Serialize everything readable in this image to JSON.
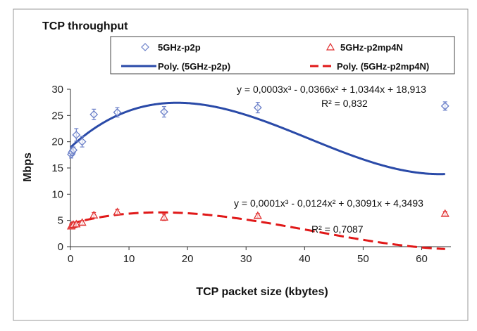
{
  "chart_data": {
    "type": "scatter",
    "title": "TCP throughput",
    "xlabel": "TCP packet size (kbytes)",
    "ylabel": "Mbps",
    "xlim": [
      0,
      65
    ],
    "ylim": [
      0,
      30
    ],
    "x_ticks": [
      0,
      10,
      20,
      30,
      40,
      50,
      60
    ],
    "y_ticks": [
      0,
      5,
      10,
      15,
      20,
      25,
      30
    ],
    "grid": false,
    "legend_position": "top",
    "series": [
      {
        "name": "5GHz-p2p",
        "marker": "diamond",
        "color": "#6a7fc8",
        "points": [
          {
            "x": 0.125,
            "y": 17.6,
            "err": 0.7
          },
          {
            "x": 0.25,
            "y": 18.0,
            "err": 0.6
          },
          {
            "x": 0.5,
            "y": 18.4,
            "err": 0.6
          },
          {
            "x": 1,
            "y": 21.3,
            "err": 1.2
          },
          {
            "x": 2,
            "y": 20.0,
            "err": 1.0
          },
          {
            "x": 4,
            "y": 25.2,
            "err": 1.0
          },
          {
            "x": 8,
            "y": 25.6,
            "err": 0.9
          },
          {
            "x": 16,
            "y": 25.7,
            "err": 1.0
          },
          {
            "x": 32,
            "y": 26.5,
            "err": 1.0
          },
          {
            "x": 64,
            "y": 26.8,
            "err": 0.8
          }
        ]
      },
      {
        "name": "5GHz-p2mp4N",
        "marker": "triangle",
        "color": "#e03030",
        "points": [
          {
            "x": 0.125,
            "y": 3.9,
            "err": 0.4
          },
          {
            "x": 0.25,
            "y": 4.1,
            "err": 0.4
          },
          {
            "x": 0.5,
            "y": 4.2,
            "err": 0.4
          },
          {
            "x": 1,
            "y": 4.3,
            "err": 0.4
          },
          {
            "x": 2,
            "y": 4.6,
            "err": 0.4
          },
          {
            "x": 4,
            "y": 6.0,
            "err": 0.5
          },
          {
            "x": 8,
            "y": 6.6,
            "err": 0.5
          },
          {
            "x": 16,
            "y": 5.6,
            "err": 0.6
          },
          {
            "x": 32,
            "y": 5.9,
            "err": 0.4
          },
          {
            "x": 64,
            "y": 6.3,
            "err": 0.4
          }
        ]
      }
    ],
    "trendlines": [
      {
        "name": "Poly. (5GHz-p2p)",
        "style": "solid",
        "color": "#2a4aa8",
        "coefficients": [
          0.0003,
          -0.0366,
          1.0344,
          18.913
        ],
        "equation": "y = 0,0003x³ - 0,0366x² + 1,0344x + 18,913",
        "r2": "R² = 0,832"
      },
      {
        "name": "Poly. (5GHz-p2mp4N)",
        "style": "dashed",
        "color": "#e01818",
        "coefficients": [
          0.0001,
          -0.0124,
          0.3091,
          4.3493
        ],
        "equation": "y = 0,0001x³ - 0,0124x² + 0,3091x + 4,3493",
        "r2": "R² = 0,7087"
      }
    ]
  }
}
